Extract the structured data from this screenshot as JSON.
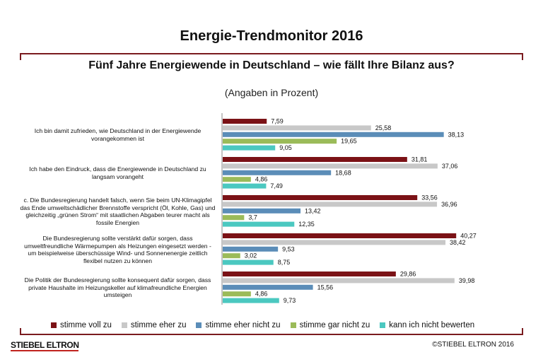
{
  "header": {
    "title": "Energie-Trendmonitor 2016",
    "question": "Fünf Jahre Energiewende in Deutschland – wie fällt Ihre Bilanz aus?",
    "unit_note": "(Angaben in Prozent)"
  },
  "footer": {
    "brand": "STIEBEL ELTRON",
    "copyright": "©STIEBEL ELTRON 2016"
  },
  "colors": {
    "frame": "#7a1b1f",
    "axis": "#8a8a8a",
    "text": "#111111"
  },
  "chart_data": {
    "type": "bar",
    "orientation": "horizontal",
    "title": "Fünf Jahre Energiewende in Deutschland – wie fällt Ihre Bilanz aus?",
    "xlabel": "",
    "ylabel": "",
    "xlim": [
      0,
      45
    ],
    "grid": false,
    "legend_position": "bottom",
    "categories": [
      "Ich bin damit zufrieden, wie Deutschland in der Energiewende vorangekommen ist",
      "Ich habe den Eindruck, dass die Energiewende in Deutschland zu langsam vorangeht",
      "c. Die Bundesregierung handelt falsch, wenn Sie beim UN-Klimagipfel das Ende umweltschädlicher Brennstoffe  verspricht (Öl, Kohle, Gas) und gleichzeitig „grünen Strom“ mit staatlichen Abgaben teurer macht als fossile Energien",
      "Die Bundesregierung sollte verstärkt dafür sorgen, dass umweltfreundliche Wärmepumpen als Heizungen eingesetzt werden - um beispielweise überschüssige Wind- und Sonnenenergie zeitlich flexibel nutzen zu können",
      "Die Politik der Bundesregierung sollte konsequent dafür sorgen, dass private Haushalte im Heizungskeller auf klimafreundliche Energien umsteigen"
    ],
    "series": [
      {
        "name": "stimme voll zu",
        "color": "#7b1216",
        "values": [
          7.59,
          31.81,
          33.56,
          40.27,
          29.86
        ],
        "labels": [
          "7,59",
          "31,81",
          "33,56",
          "40,27",
          "29,86"
        ]
      },
      {
        "name": "stimme eher zu",
        "color": "#c8c8c8",
        "values": [
          25.58,
          37.06,
          36.96,
          38.42,
          39.98
        ],
        "labels": [
          "25,58",
          "37,06",
          "36,96",
          "38,42",
          "39,98"
        ]
      },
      {
        "name": "stimme eher nicht zu",
        "color": "#5b8db8",
        "values": [
          38.13,
          18.68,
          13.42,
          9.53,
          15.56
        ],
        "labels": [
          "38,13",
          "18,68",
          "13,42",
          "9,53",
          "15,56"
        ]
      },
      {
        "name": "stimme gar nicht zu",
        "color": "#9bbb59",
        "values": [
          19.65,
          4.86,
          3.7,
          3.02,
          4.86
        ],
        "labels": [
          "19,65",
          "4,86",
          "3,7",
          "3,02",
          "4,86"
        ]
      },
      {
        "name": "kann ich nicht bewerten",
        "color": "#4bc8c0",
        "values": [
          9.05,
          7.49,
          12.35,
          8.75,
          9.73
        ],
        "labels": [
          "9,05",
          "7,49",
          "12,35",
          "8,75",
          "9,73"
        ]
      }
    ]
  }
}
